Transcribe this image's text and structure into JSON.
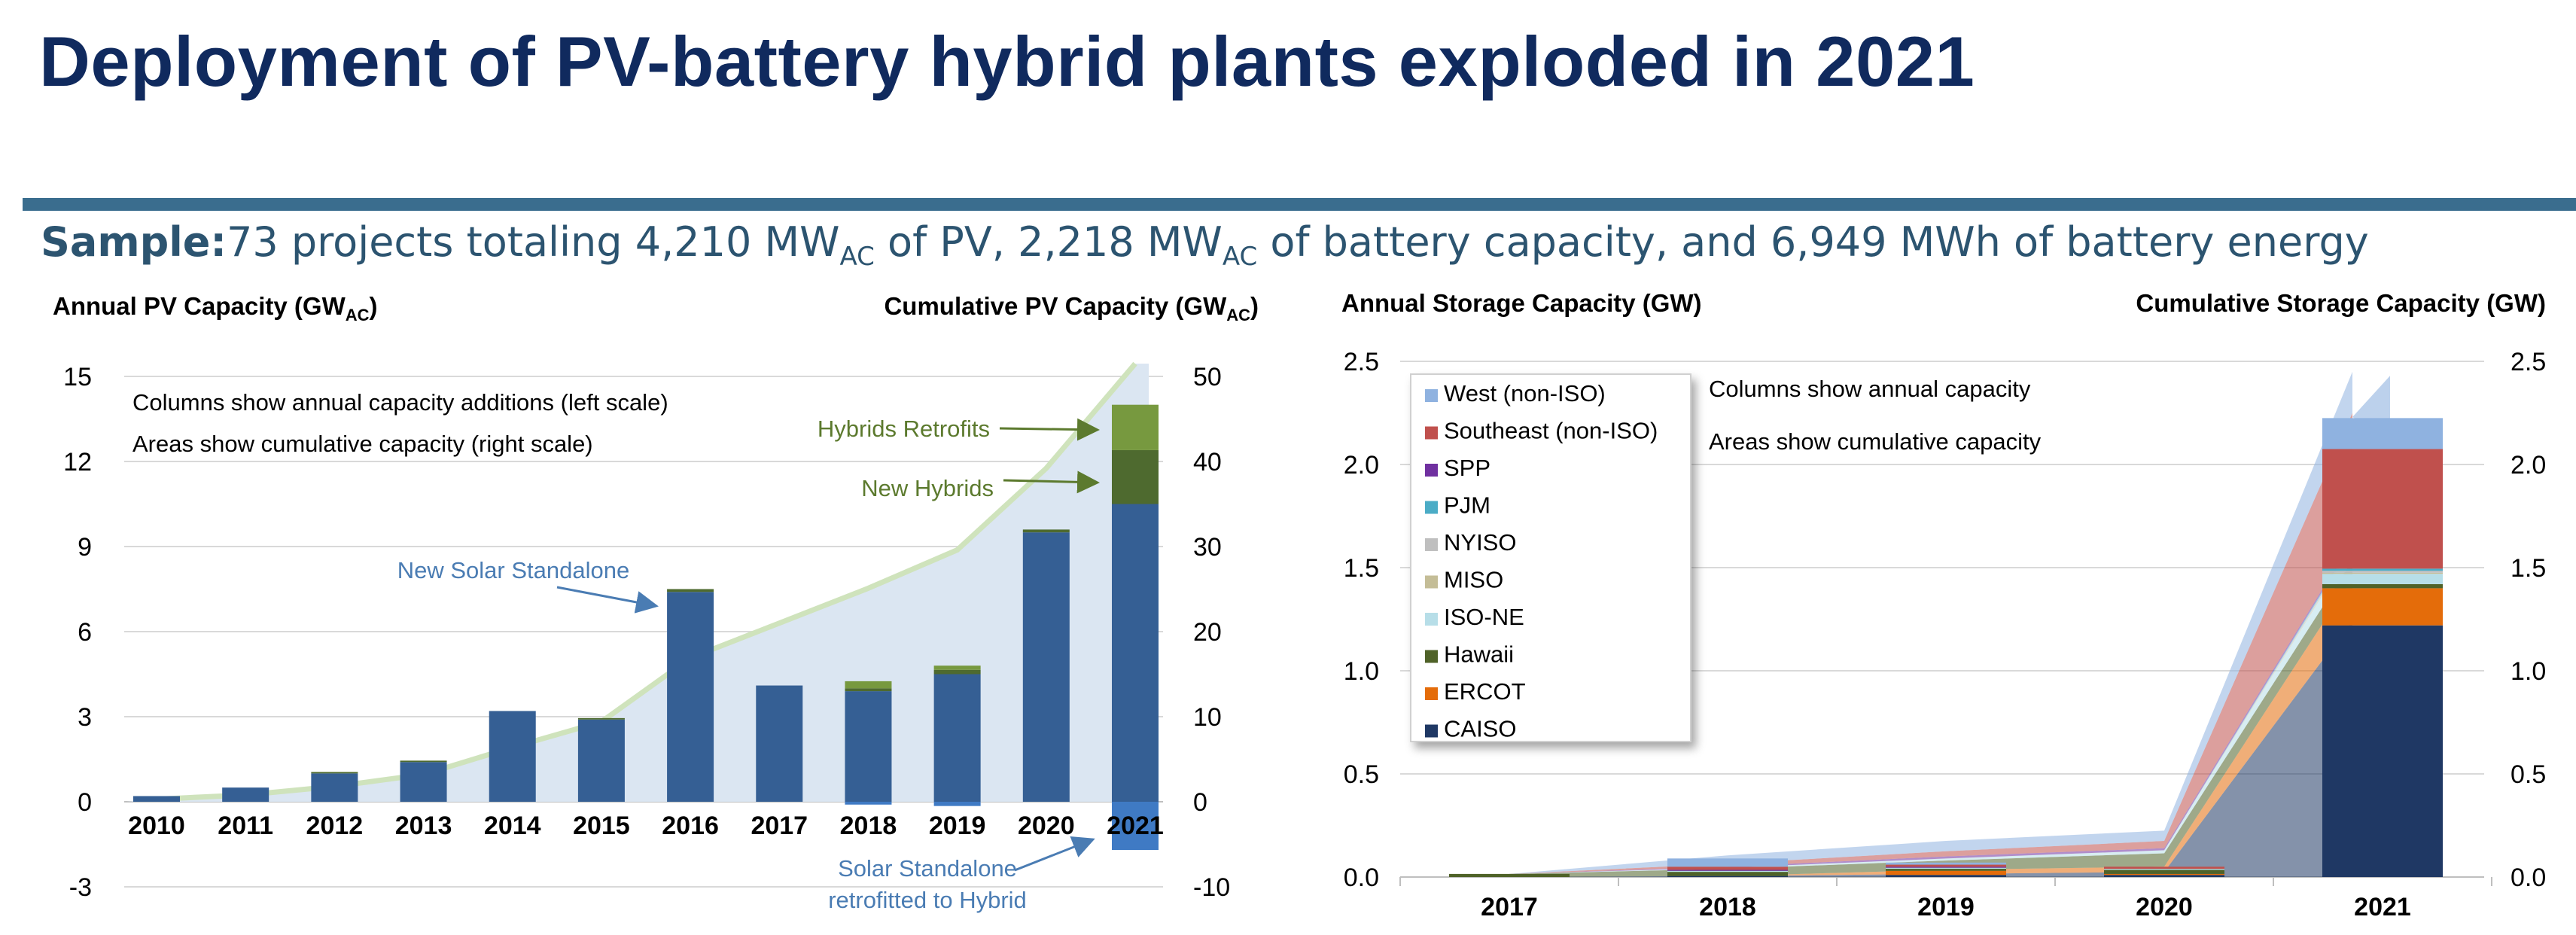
{
  "title": "Deployment of PV-battery hybrid plants exploded in 2021",
  "sample": {
    "label": "Sample:",
    "t1": "73 projects totaling 4,210 MW",
    "sub1": "AC",
    "t2": " of PV, 2,218 MW",
    "sub2": "AC",
    "t3": " of battery capacity, and 6,949 MWh of battery energy"
  },
  "colors": {
    "solar": "#355f94",
    "hybrids": "#4e6a2f",
    "retrofits": "#77993f",
    "retro_neg": "#3f7ac4",
    "pv_area": "#dbe6f2",
    "pv_area_top": "#cfe3bc",
    "annot_blue": "#4a7cb3",
    "annot_green": "#5c7a2e",
    "grid": "#d9d9d9",
    "west": "#8fb2e0",
    "southeast": "#c0504d",
    "spp": "#7030a0",
    "pjm": "#4bacc6",
    "nyiso": "#bfbfbf",
    "miso": "#c4bd97",
    "isone": "#b7dee8",
    "hawaii": "#4f6228",
    "ercot": "#e46c0a",
    "caiso": "#1f3864"
  },
  "chart_data": [
    {
      "type": "bar",
      "ylabel": "Annual PV Capacity (GW",
      "ylabel_sub": "AC",
      "ylabel_close": ")",
      "y2label": "Cumulative PV Capacity (GW",
      "y2label_sub": "AC",
      "y2label_close": ")",
      "ylim": [
        -3,
        15
      ],
      "y2lim": [
        -10,
        50
      ],
      "yticks": [
        "15",
        "12",
        "9",
        "6",
        "3",
        "0",
        "-3"
      ],
      "y2ticks": [
        "50",
        "40",
        "30",
        "20",
        "10",
        "0",
        "-10"
      ],
      "categories": [
        "2010",
        "2011",
        "2012",
        "2013",
        "2014",
        "2015",
        "2016",
        "2017",
        "2018",
        "2019",
        "2020",
        "2021"
      ],
      "series": [
        {
          "name": "New Solar Standalone",
          "values": [
            0.2,
            0.5,
            1.0,
            1.4,
            3.2,
            2.9,
            7.4,
            4.1,
            3.9,
            4.5,
            9.5,
            10.5
          ]
        },
        {
          "name": "New Hybrids",
          "values": [
            0,
            0,
            0.05,
            0.05,
            0,
            0.05,
            0.1,
            0,
            0.1,
            0.15,
            0.1,
            1.9
          ]
        },
        {
          "name": "Hybrids Retrofits",
          "values": [
            0,
            0,
            0,
            0,
            0,
            0,
            0,
            0,
            0.25,
            0.15,
            0,
            1.6
          ]
        },
        {
          "name": "Solar Standalone retrofitted to Hybrid",
          "values": [
            0,
            0,
            0,
            0,
            0,
            0,
            0,
            0,
            -0.1,
            -0.15,
            0,
            -1.7
          ]
        }
      ],
      "cumulative": [
        0.3,
        0.8,
        1.8,
        3.2,
        6.4,
        9.4,
        16.9,
        21.0,
        25.1,
        29.6,
        39.2,
        51.5
      ],
      "notes": [
        "Columns show annual capacity additions (left scale)",
        "Areas show cumulative capacity (right scale)"
      ],
      "annotations": {
        "solar": "New Solar Standalone",
        "hybrids": "New Hybrids",
        "retrofits": "Hybrids Retrofits",
        "retro_line1": "Solar Standalone",
        "retro_line2": "retrofitted to Hybrid"
      }
    },
    {
      "type": "bar",
      "ylabel": "Annual Storage Capacity (GW)",
      "y2label": "Cumulative Storage Capacity (GW)",
      "ylim": [
        0,
        2.5
      ],
      "y2lim": [
        0,
        2.5
      ],
      "yticks": [
        "2.5",
        "2.0",
        "1.5",
        "1.0",
        "0.5",
        "0.0"
      ],
      "y2ticks": [
        "2.5",
        "2.0",
        "1.5",
        "1.0",
        "0.5",
        "0.0"
      ],
      "categories": [
        "2017",
        "2018",
        "2019",
        "2020",
        "2021"
      ],
      "series": [
        {
          "name": "CAISO",
          "key": "caiso",
          "values": [
            0,
            0.005,
            0.01,
            0.01,
            1.22
          ]
        },
        {
          "name": "ERCOT",
          "key": "ercot",
          "values": [
            0,
            0,
            0.02,
            0.005,
            0.18
          ]
        },
        {
          "name": "Hawaii",
          "key": "hawaii",
          "values": [
            0.015,
            0.02,
            0.01,
            0.02,
            0.02
          ]
        },
        {
          "name": "ISO-NE",
          "key": "isone",
          "values": [
            0,
            0.005,
            0.005,
            0.005,
            0.05
          ]
        },
        {
          "name": "MISO",
          "key": "miso",
          "values": [
            0,
            0,
            0,
            0,
            0.005
          ]
        },
        {
          "name": "NYISO",
          "key": "nyiso",
          "values": [
            0,
            0,
            0,
            0,
            0.01
          ]
        },
        {
          "name": "PJM",
          "key": "pjm",
          "values": [
            0,
            0,
            0,
            0,
            0.01
          ]
        },
        {
          "name": "SPP",
          "key": "spp",
          "values": [
            0,
            0.005,
            0.005,
            0,
            0
          ]
        },
        {
          "name": "Southeast (non-ISO)",
          "key": "southeast",
          "values": [
            0,
            0.015,
            0.01,
            0.01,
            0.58
          ]
        },
        {
          "name": "West (non-ISO)",
          "key": "west",
          "values": [
            0,
            0.04,
            0.01,
            0,
            0.15
          ]
        }
      ],
      "legend_order": [
        "West (non-ISO)",
        "Southeast (non-ISO)",
        "SPP",
        "PJM",
        "NYISO",
        "MISO",
        "ISO-NE",
        "Hawaii",
        "ERCOT",
        "CAISO"
      ],
      "cumulative_total": [
        0.015,
        0.09,
        0.14,
        0.19,
        2.43
      ],
      "notes": [
        "Columns show annual capacity",
        "Areas show cumulative capacity"
      ]
    }
  ]
}
